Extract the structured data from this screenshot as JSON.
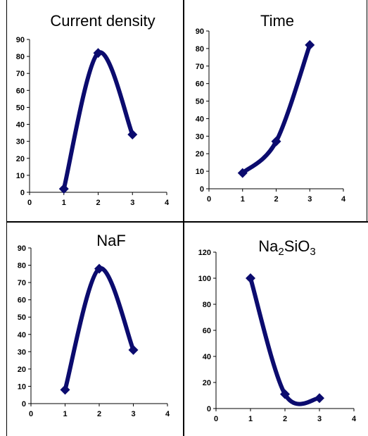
{
  "chart_data": [
    {
      "type": "line",
      "title": "Current density",
      "xlim": [
        0,
        4
      ],
      "ylim": [
        0,
        90
      ],
      "x_ticks": [
        "0",
        "1",
        "2",
        "3",
        "4"
      ],
      "y_ticks": [
        "0",
        "10",
        "20",
        "30",
        "40",
        "50",
        "60",
        "70",
        "80",
        "90"
      ],
      "series": [
        {
          "x": [
            1,
            2,
            3
          ],
          "y": [
            2,
            82,
            34
          ]
        }
      ],
      "grid": false,
      "legend": "none",
      "color": "#0b0b6e"
    },
    {
      "type": "line",
      "title": "Time",
      "xlim": [
        0,
        4
      ],
      "ylim": [
        0,
        90
      ],
      "x_ticks": [
        "0",
        "1",
        "2",
        "3",
        "4"
      ],
      "y_ticks": [
        "0",
        "10",
        "20",
        "30",
        "40",
        "50",
        "60",
        "70",
        "80",
        "90"
      ],
      "series": [
        {
          "x": [
            1,
            2,
            3
          ],
          "y": [
            9,
            27,
            82
          ]
        }
      ],
      "grid": false,
      "legend": "none",
      "color": "#0b0b6e"
    },
    {
      "type": "line",
      "title": "NaF",
      "xlim": [
        0,
        4
      ],
      "ylim": [
        0,
        90
      ],
      "x_ticks": [
        "0",
        "1",
        "2",
        "3",
        "4"
      ],
      "y_ticks": [
        "0",
        "10",
        "20",
        "30",
        "40",
        "50",
        "60",
        "70",
        "80",
        "90"
      ],
      "series": [
        {
          "x": [
            1,
            2,
            3
          ],
          "y": [
            8,
            78,
            31
          ]
        }
      ],
      "grid": false,
      "legend": "none",
      "color": "#0b0b6e"
    },
    {
      "type": "line",
      "title_parts": [
        "Na",
        "2",
        "SiO",
        "3"
      ],
      "xlim": [
        0,
        4
      ],
      "ylim": [
        0,
        120
      ],
      "x_ticks": [
        "0",
        "1",
        "2",
        "3",
        "4"
      ],
      "y_ticks": [
        "0",
        "20",
        "40",
        "60",
        "80",
        "100",
        "120"
      ],
      "series": [
        {
          "x": [
            1,
            2,
            3
          ],
          "y": [
            100,
            11,
            8
          ]
        }
      ],
      "grid": false,
      "legend": "none",
      "color": "#0b0b6e"
    }
  ]
}
